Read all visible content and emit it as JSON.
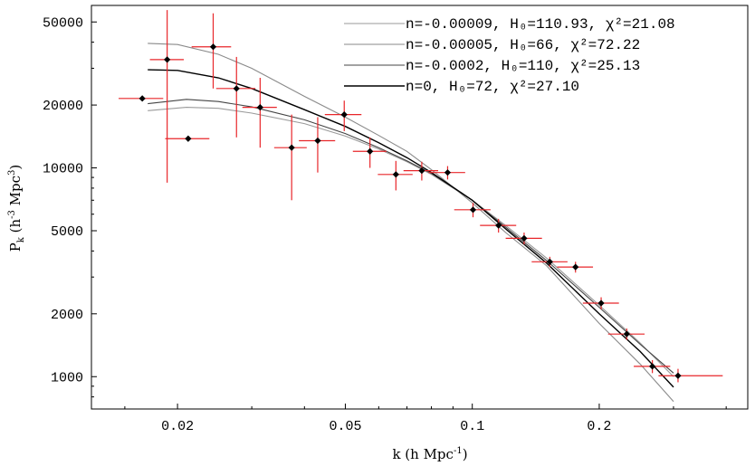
{
  "chart_data": {
    "type": "scatter",
    "title": "",
    "xlabel": "k (h Mpc⁻¹)",
    "ylabel": "Pₖ (h⁻³ Mpc³)",
    "x_scale": "log",
    "y_scale": "log",
    "xlim": [
      0.0125,
      0.45
    ],
    "ylim": [
      700,
      60000
    ],
    "x_ticks": [
      {
        "value": 0.02,
        "label": "0.02"
      },
      {
        "value": 0.05,
        "label": "0.05"
      },
      {
        "value": 0.1,
        "label": "0.1"
      },
      {
        "value": 0.2,
        "label": "0.2"
      }
    ],
    "y_ticks": [
      {
        "value": 1000,
        "label": "1000"
      },
      {
        "value": 2000,
        "label": "2000"
      },
      {
        "value": 5000,
        "label": "5000"
      },
      {
        "value": 10000,
        "label": "10000"
      },
      {
        "value": 20000,
        "label": "20000"
      },
      {
        "value": 50000,
        "label": "50000"
      }
    ],
    "grid": false,
    "legend_position": "top-right",
    "series": [
      {
        "name": "n=-0.00009, H₀=110.93, χ²=21.08",
        "color": "#9a9a9a",
        "x": [
          0.017,
          0.021,
          0.025,
          0.03,
          0.04,
          0.05,
          0.06,
          0.07,
          0.08,
          0.1,
          0.12,
          0.15,
          0.2,
          0.25,
          0.3
        ],
        "y": [
          18800,
          19500,
          19300,
          18300,
          16300,
          14200,
          12300,
          10700,
          9300,
          7000,
          5300,
          3700,
          2200,
          1450,
          1000
        ]
      },
      {
        "name": "n=-0.00005, H₀=66, χ²=72.22",
        "color": "#8a8a8a",
        "x": [
          0.017,
          0.02,
          0.025,
          0.03,
          0.04,
          0.05,
          0.06,
          0.07,
          0.08,
          0.1,
          0.12,
          0.15,
          0.2,
          0.25,
          0.3
        ],
        "y": [
          39500,
          39000,
          35000,
          30000,
          22000,
          17500,
          14300,
          12000,
          9800,
          6800,
          4900,
          3400,
          1800,
          1150,
          760
        ]
      },
      {
        "name": "n=-0.0002, H₀=110, χ²=25.13",
        "color": "#444444",
        "x": [
          0.017,
          0.021,
          0.025,
          0.03,
          0.04,
          0.05,
          0.06,
          0.07,
          0.08,
          0.1,
          0.12,
          0.15,
          0.2,
          0.25,
          0.3
        ],
        "y": [
          20300,
          21300,
          20800,
          19600,
          17000,
          14600,
          12500,
          10800,
          9400,
          7000,
          5200,
          3600,
          2150,
          1430,
          1040
        ]
      },
      {
        "name": "n=0, H₀=72, χ²=27.10",
        "color": "#000000",
        "x": [
          0.017,
          0.02,
          0.025,
          0.03,
          0.04,
          0.05,
          0.06,
          0.07,
          0.08,
          0.1,
          0.12,
          0.15,
          0.2,
          0.25,
          0.3
        ],
        "y": [
          29500,
          29300,
          27000,
          24000,
          19000,
          15800,
          13200,
          11200,
          9500,
          7000,
          5100,
          3500,
          2000,
          1320,
          890
        ]
      }
    ],
    "points": [
      {
        "x": 0.0165,
        "y": 21500,
        "xerr": [
          0.0145,
          0.0185
        ],
        "yerr": [
          21500,
          21500
        ]
      },
      {
        "x": 0.0189,
        "y": 33000,
        "xerr": [
          0.0172,
          0.0207
        ],
        "yerr": [
          8500,
          57000
        ]
      },
      {
        "x": 0.0212,
        "y": 13800,
        "xerr": [
          0.0187,
          0.0238
        ],
        "yerr": [
          13800,
          13800
        ]
      },
      {
        "x": 0.0243,
        "y": 38000,
        "xerr": [
          0.0216,
          0.0268
        ],
        "yerr": [
          24000,
          55000
        ]
      },
      {
        "x": 0.0276,
        "y": 24000,
        "xerr": [
          0.0247,
          0.0306
        ],
        "yerr": [
          14000,
          34000
        ]
      },
      {
        "x": 0.0314,
        "y": 19500,
        "xerr": [
          0.0285,
          0.0344
        ],
        "yerr": [
          12500,
          27000
        ]
      },
      {
        "x": 0.0373,
        "y": 12500,
        "xerr": [
          0.0339,
          0.0405
        ],
        "yerr": [
          7000,
          18000
        ]
      },
      {
        "x": 0.043,
        "y": 13500,
        "xerr": [
          0.0388,
          0.0473
        ],
        "yerr": [
          9500,
          17500
        ]
      },
      {
        "x": 0.0497,
        "y": 18000,
        "xerr": [
          0.0447,
          0.0546
        ],
        "yerr": [
          15000,
          21000
        ]
      },
      {
        "x": 0.0572,
        "y": 12000,
        "xerr": [
          0.0521,
          0.0626
        ],
        "yerr": [
          10000,
          14000
        ]
      },
      {
        "x": 0.0659,
        "y": 9300,
        "xerr": [
          0.0597,
          0.0722
        ],
        "yerr": [
          7800,
          10800
        ]
      },
      {
        "x": 0.0759,
        "y": 9700,
        "xerr": [
          0.0687,
          0.083
        ],
        "yerr": [
          8700,
          10700
        ]
      },
      {
        "x": 0.0874,
        "y": 9500,
        "xerr": [
          0.0788,
          0.0962
        ],
        "yerr": [
          8800,
          10200
        ]
      },
      {
        "x": 0.1004,
        "y": 6300,
        "xerr": [
          0.0906,
          0.1105
        ],
        "yerr": [
          5800,
          6800
        ]
      },
      {
        "x": 0.1154,
        "y": 5300,
        "xerr": [
          0.1043,
          0.1271
        ],
        "yerr": [
          4900,
          5700
        ]
      },
      {
        "x": 0.1327,
        "y": 4600,
        "xerr": [
          0.12,
          0.1463
        ],
        "yerr": [
          4300,
          4900
        ]
      },
      {
        "x": 0.1527,
        "y": 3550,
        "xerr": [
          0.1383,
          0.1682
        ],
        "yerr": [
          3350,
          3750
        ]
      },
      {
        "x": 0.1757,
        "y": 3350,
        "xerr": [
          0.1589,
          0.1933
        ],
        "yerr": [
          3150,
          3550
        ]
      },
      {
        "x": 0.2021,
        "y": 2250,
        "xerr": [
          0.1829,
          0.2227
        ],
        "yerr": [
          2100,
          2400
        ]
      },
      {
        "x": 0.2324,
        "y": 1600,
        "xerr": [
          0.2099,
          0.2562
        ],
        "yerr": [
          1500,
          1700
        ]
      },
      {
        "x": 0.2673,
        "y": 1120,
        "xerr": [
          0.2415,
          0.2947
        ],
        "yerr": [
          1040,
          1200
        ]
      },
      {
        "x": 0.3075,
        "y": 1010,
        "xerr": [
          0.2764,
          0.3925
        ],
        "yerr": [
          940,
          1090
        ]
      }
    ]
  }
}
